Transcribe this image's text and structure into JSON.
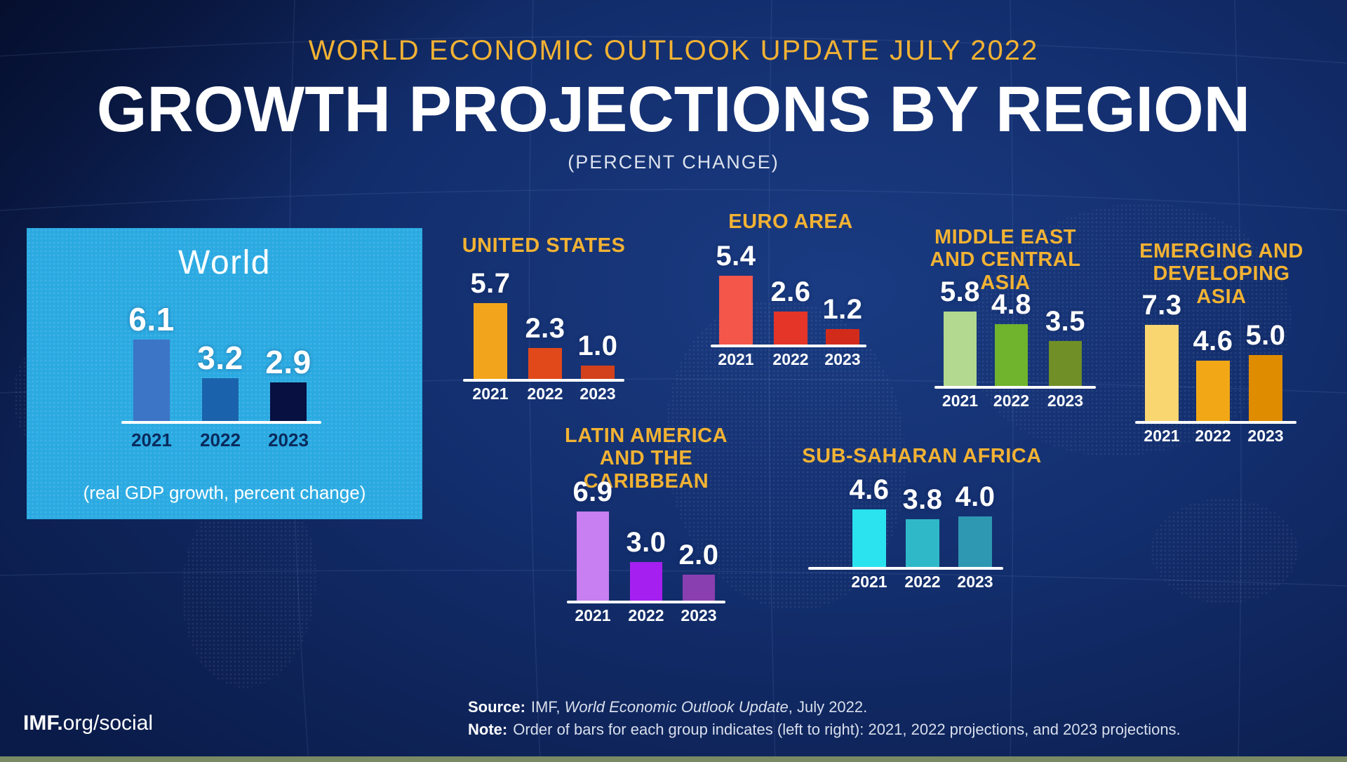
{
  "header": {
    "kicker": "WORLD ECONOMIC OUTLOOK UPDATE JULY 2022",
    "title": "GROWTH PROJECTIONS BY REGION",
    "subtitle": "(PERCENT CHANGE)"
  },
  "world_panel": {
    "caption": "(real GDP growth, percent change)"
  },
  "colors": {
    "background_navy": "#102A63",
    "accent_gold": "#F2B233",
    "world_panel_blue": "#2BAAE2",
    "baseline_white": "#FFFFFF",
    "bottom_strip_green": "#7A8A64"
  },
  "chart_data": [
    {
      "id": "world",
      "type": "bar",
      "title": "World",
      "categories": [
        "2021",
        "2022",
        "2023"
      ],
      "values": [
        6.1,
        3.2,
        2.9
      ],
      "labels": [
        "6.1",
        "3.2",
        "2.9"
      ],
      "bar_colors": [
        "#3C74C6",
        "#1A63AC",
        "#071041"
      ],
      "value_color": "#FFFFFF",
      "year_color": "#0A2A5C"
    },
    {
      "id": "united-states",
      "type": "bar",
      "title": "UNITED STATES",
      "categories": [
        "2021",
        "2022",
        "2023"
      ],
      "values": [
        5.7,
        2.3,
        1.0
      ],
      "labels": [
        "5.7",
        "2.3",
        "1.0"
      ],
      "bar_colors": [
        "#F2A51C",
        "#E1491A",
        "#D2411C"
      ],
      "value_color": "#FFFFFF",
      "year_color": "#FFFFFF"
    },
    {
      "id": "euro-area",
      "type": "bar",
      "title": "EURO AREA",
      "categories": [
        "2021",
        "2022",
        "2023"
      ],
      "values": [
        5.4,
        2.6,
        1.2
      ],
      "labels": [
        "5.4",
        "2.6",
        "1.2"
      ],
      "bar_colors": [
        "#F4564A",
        "#E43528",
        "#D22B1B"
      ],
      "value_color": "#FFFFFF",
      "year_color": "#FFFFFF"
    },
    {
      "id": "middle-east-central-asia",
      "type": "bar",
      "title": "MIDDLE EAST AND CENTRAL ASIA",
      "categories": [
        "2021",
        "2022",
        "2023"
      ],
      "values": [
        5.8,
        4.8,
        3.5
      ],
      "labels": [
        "5.8",
        "4.8",
        "3.5"
      ],
      "bar_colors": [
        "#B2D98F",
        "#6FB42C",
        "#708F26"
      ],
      "value_color": "#FFFFFF",
      "year_color": "#FFFFFF"
    },
    {
      "id": "emerging-developing-asia",
      "type": "bar",
      "title": "EMERGING AND DEVELOPING ASIA",
      "categories": [
        "2021",
        "2022",
        "2023"
      ],
      "values": [
        7.3,
        4.6,
        5.0
      ],
      "labels": [
        "7.3",
        "4.6",
        "5.0"
      ],
      "bar_colors": [
        "#FAD671",
        "#F2A716",
        "#E08C00"
      ],
      "value_color": "#FFFFFF",
      "year_color": "#FFFFFF"
    },
    {
      "id": "latin-america-caribbean",
      "type": "bar",
      "title": "LATIN AMERICA AND THE CARIBBEAN",
      "categories": [
        "2021",
        "2022",
        "2023"
      ],
      "values": [
        6.9,
        3.0,
        2.0
      ],
      "labels": [
        "6.9",
        "3.0",
        "2.0"
      ],
      "bar_colors": [
        "#C77FF2",
        "#A520F0",
        "#8A3FB0"
      ],
      "value_color": "#FFFFFF",
      "year_color": "#FFFFFF"
    },
    {
      "id": "sub-saharan-africa",
      "type": "bar",
      "title": "SUB-SAHARAN AFRICA",
      "categories": [
        "2021",
        "2022",
        "2023"
      ],
      "values": [
        4.6,
        3.8,
        4.0
      ],
      "labels": [
        "4.6",
        "3.8",
        "4.0"
      ],
      "bar_colors": [
        "#2BE2EF",
        "#2FB9C8",
        "#2E98B2"
      ],
      "value_color": "#FFFFFF",
      "year_color": "#FFFFFF"
    }
  ],
  "footer": {
    "brand_bold": "IMF.",
    "brand_rest": "org/social",
    "source_label": "Source:",
    "source_pre": "IMF, ",
    "source_italic": "World Economic Outlook Update",
    "source_post": ", July 2022.",
    "note_label": "Note:",
    "note_text": "Order of bars for each group indicates (left to right): 2021, 2022 projections, and 2023 projections."
  }
}
